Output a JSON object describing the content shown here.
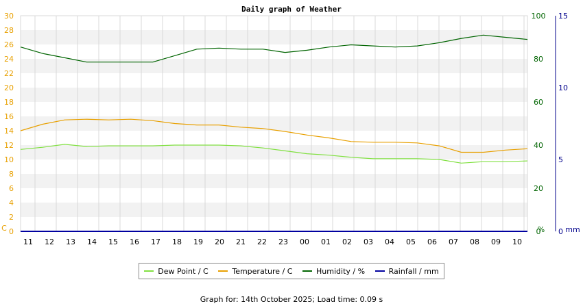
{
  "chart_data": {
    "type": "line",
    "title": "Daily graph of Weather",
    "x": [
      "11",
      "12",
      "13",
      "14",
      "15",
      "16",
      "17",
      "18",
      "19",
      "20",
      "21",
      "22",
      "23",
      "00",
      "01",
      "02",
      "03",
      "04",
      "05",
      "06",
      "07",
      "08",
      "09",
      "10"
    ],
    "left_axis": {
      "unit_label": "C",
      "ticks": [
        0,
        2,
        4,
        6,
        8,
        10,
        12,
        14,
        16,
        18,
        20,
        22,
        24,
        26,
        28,
        30
      ],
      "ylim": [
        0,
        30
      ],
      "color": "#e8a000"
    },
    "right_axis_1": {
      "unit_label": "%",
      "ticks": [
        0,
        20,
        40,
        60,
        80,
        100
      ],
      "ylim": [
        0,
        100
      ],
      "color": "#006400"
    },
    "right_axis_2": {
      "unit_label": "mm",
      "ticks": [
        0,
        5,
        10,
        15
      ],
      "ylim": [
        0,
        15
      ],
      "color": "#00008b"
    },
    "grid": true,
    "series": [
      {
        "name": "Dew Point / C",
        "axis": "left",
        "color": "#80e040",
        "values": [
          11.4,
          11.7,
          12.1,
          11.8,
          11.9,
          11.9,
          11.9,
          12.0,
          12.0,
          12.0,
          11.9,
          11.6,
          11.2,
          10.8,
          10.6,
          10.3,
          10.1,
          10.1,
          10.1,
          10.0,
          9.5,
          9.7,
          9.7,
          9.8
        ]
      },
      {
        "name": "Temperature / C",
        "axis": "left",
        "color": "#e8a000",
        "values": [
          14.0,
          14.9,
          15.5,
          15.6,
          15.5,
          15.6,
          15.4,
          15.0,
          14.8,
          14.8,
          14.5,
          14.3,
          13.9,
          13.4,
          13.0,
          12.5,
          12.4,
          12.4,
          12.3,
          11.9,
          11.0,
          11.0,
          11.3,
          11.5
        ]
      },
      {
        "name": "Humidity / %",
        "axis": "right1",
        "color": "#006400",
        "values": [
          85.5,
          82.5,
          80.5,
          78.5,
          78.5,
          78.5,
          78.5,
          81.5,
          84.5,
          85.0,
          84.5,
          84.5,
          83.0,
          84.0,
          85.5,
          86.5,
          86.0,
          85.5,
          86.0,
          87.5,
          89.5,
          91.0,
          90.0,
          89.0
        ]
      },
      {
        "name": "Rainfall / mm",
        "axis": "right2",
        "color": "#0000a0",
        "values": [
          0,
          0,
          0,
          0,
          0,
          0,
          0,
          0,
          0,
          0,
          0,
          0,
          0,
          0,
          0,
          0,
          0,
          0,
          0,
          0,
          0,
          0,
          0,
          0
        ]
      }
    ],
    "legend_position": "bottom"
  },
  "footer": "Graph for: 14th October 2025; Load time: 0.09 s"
}
